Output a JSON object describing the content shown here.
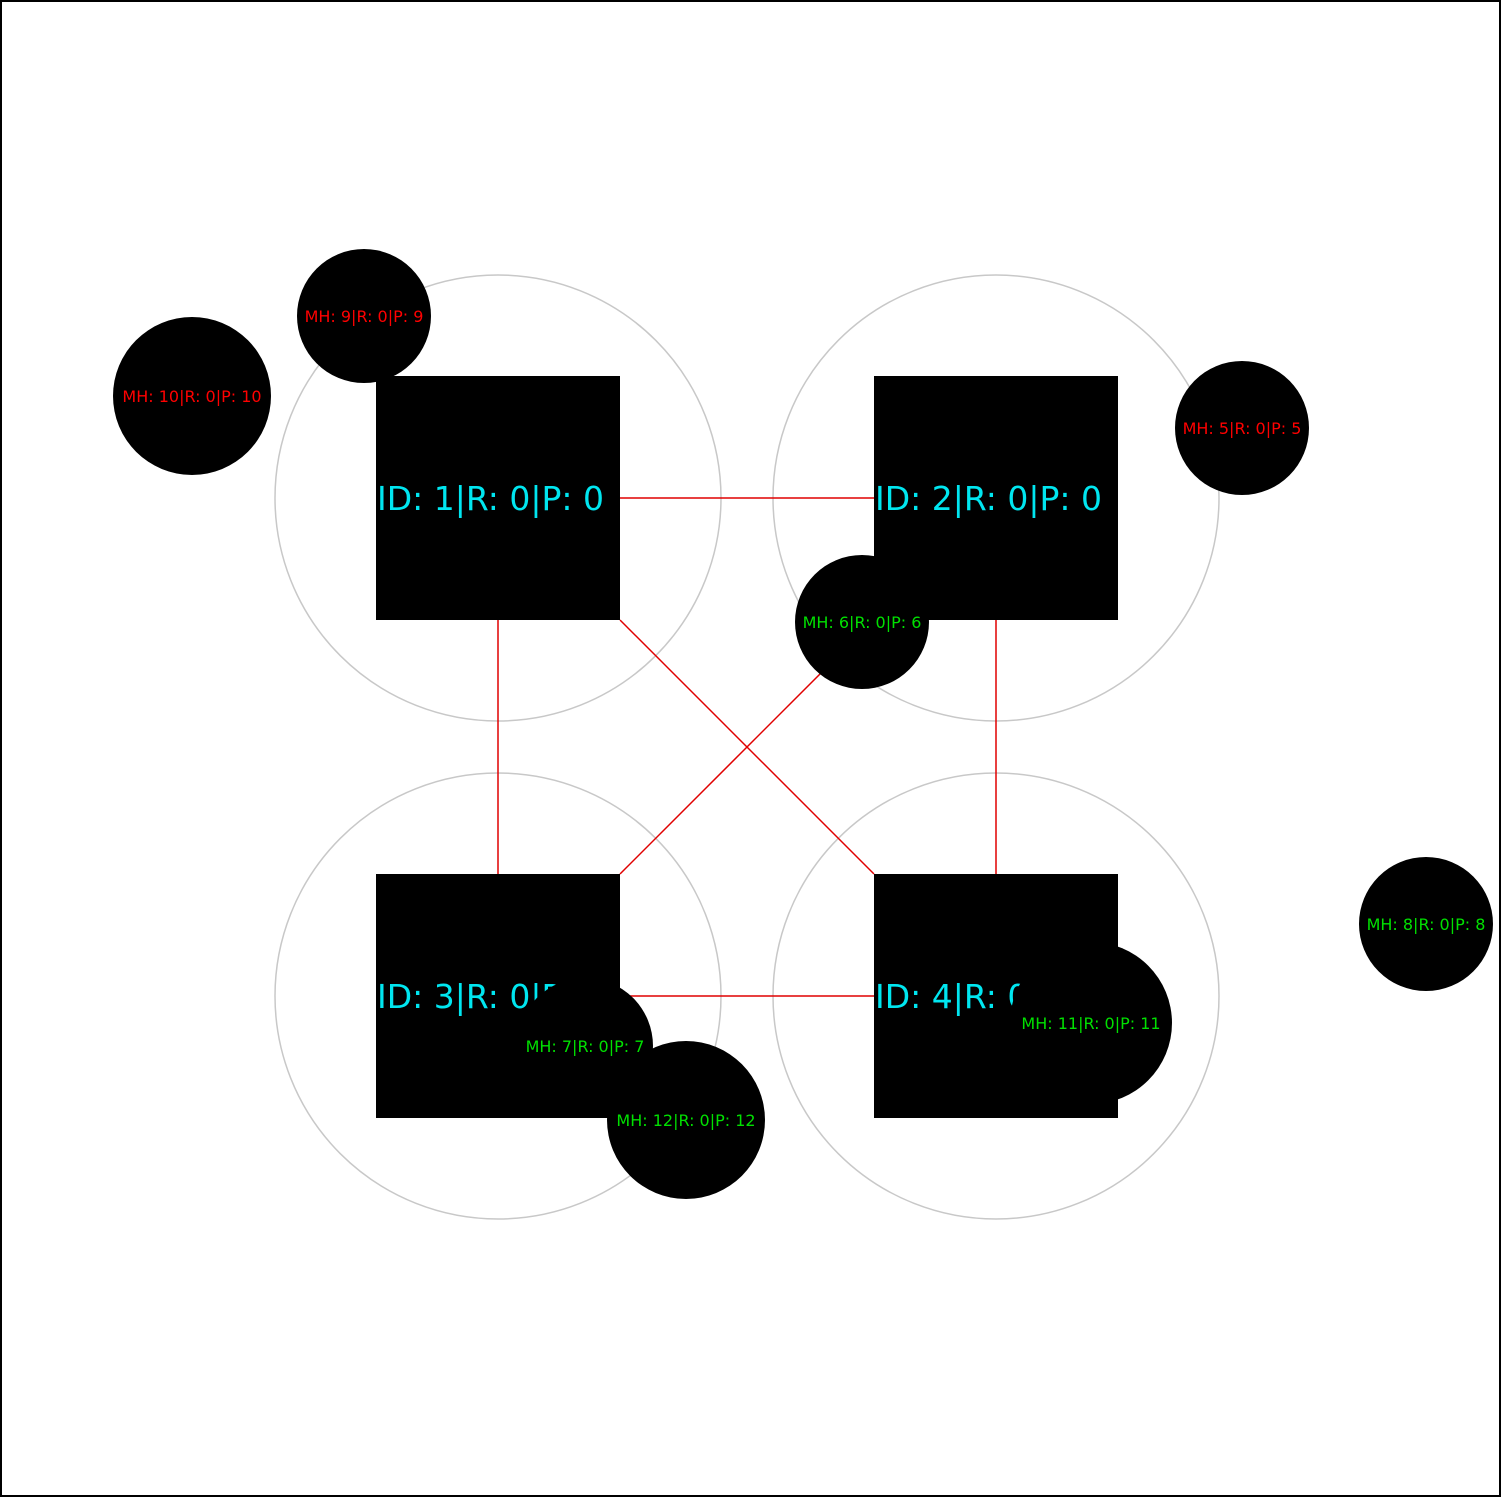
{
  "colors": {
    "background": "#ffffff",
    "frame": "#000000",
    "station_fill": "#000000",
    "station_text": "#00e6f0",
    "range_ring": "#c8c8c8",
    "link": "#e00000",
    "mh_fill": "#000000",
    "mh_text_out_of_range": "#ff0000",
    "mh_text_in_range": "#00e000"
  },
  "stations": [
    {
      "id": "1",
      "label": "ID: 1|R: 0|P: 0"
    },
    {
      "id": "2",
      "label": "ID: 2|R: 0|P: 0"
    },
    {
      "id": "3",
      "label": "ID: 3|R: 0|P: 0"
    },
    {
      "id": "4",
      "label": "ID: 4|R: 0|P: 0"
    }
  ],
  "links": [
    {
      "from": "1",
      "to": "2"
    },
    {
      "from": "1",
      "to": "3"
    },
    {
      "from": "1",
      "to": "4"
    },
    {
      "from": "2",
      "to": "4"
    },
    {
      "from": "2",
      "to": "3"
    },
    {
      "from": "3",
      "to": "4"
    }
  ],
  "mobile_hosts": [
    {
      "id": "5",
      "label": "MH: 5|R: 0|P: 5",
      "status": "out_of_range"
    },
    {
      "id": "6",
      "label": "MH: 6|R: 0|P: 6",
      "status": "in_range"
    },
    {
      "id": "7",
      "label": "MH: 7|R: 0|P: 7",
      "status": "in_range"
    },
    {
      "id": "8",
      "label": "MH: 8|R: 0|P: 8",
      "status": "in_range"
    },
    {
      "id": "9",
      "label": "MH: 9|R: 0|P: 9",
      "status": "out_of_range"
    },
    {
      "id": "10",
      "label": "MH: 10|R: 0|P: 10",
      "status": "out_of_range"
    },
    {
      "id": "11",
      "label": "MH: 11|R: 0|P: 11",
      "status": "in_range"
    },
    {
      "id": "12",
      "label": "MH: 12|R: 0|P: 12",
      "status": "in_range"
    }
  ]
}
